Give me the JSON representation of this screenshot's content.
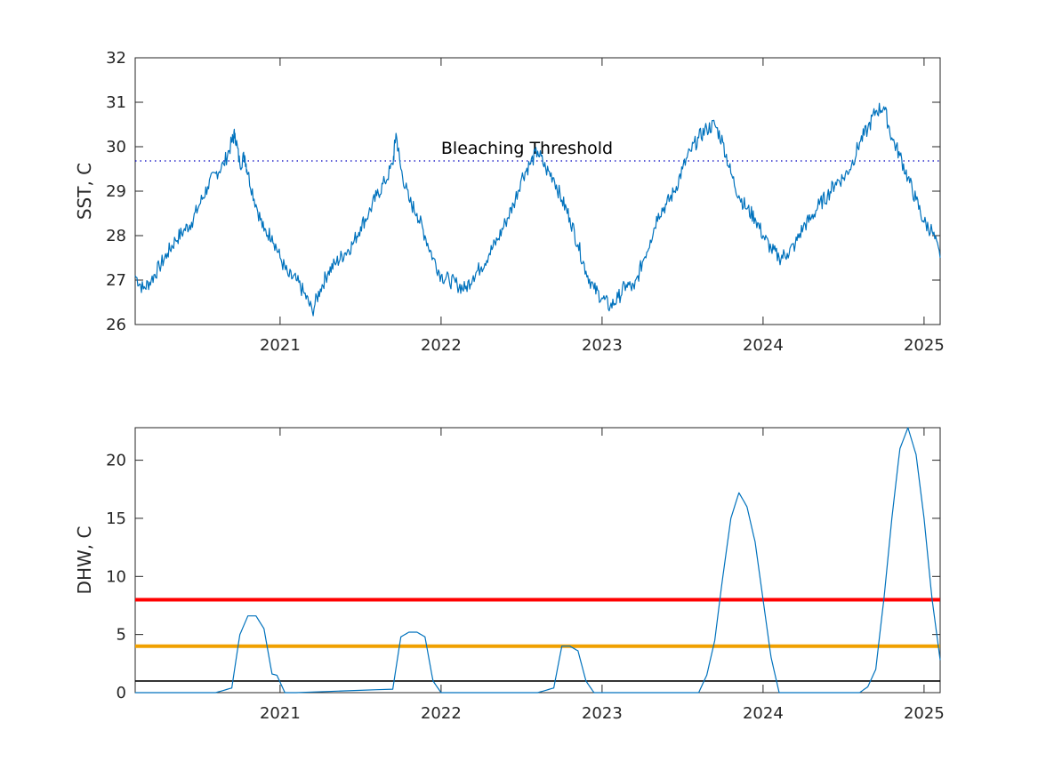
{
  "chart_data": [
    {
      "type": "line",
      "ylabel": "SST, C",
      "xlim": [
        2020.1,
        2025.1
      ],
      "ylim": [
        26,
        32
      ],
      "yticks": [
        26,
        27,
        28,
        29,
        30,
        31,
        32
      ],
      "xticks": [
        2021,
        2022,
        2023,
        2024,
        2025
      ],
      "grid": false,
      "series": [
        {
          "color": "#0072bd",
          "x": [
            2020.1,
            2020.15,
            2020.2,
            2020.25,
            2020.3,
            2020.35,
            2020.4,
            2020.45,
            2020.5,
            2020.55,
            2020.6,
            2020.65,
            2020.7,
            2020.72,
            2020.75,
            2020.78,
            2020.8,
            2020.85,
            2020.9,
            2020.95,
            2021.0,
            2021.05,
            2021.1,
            2021.15,
            2021.2,
            2021.25,
            2021.3,
            2021.35,
            2021.4,
            2021.45,
            2021.5,
            2021.55,
            2021.6,
            2021.65,
            2021.7,
            2021.72,
            2021.75,
            2021.8,
            2021.85,
            2021.9,
            2021.95,
            2022.0,
            2022.05,
            2022.1,
            2022.15,
            2022.2,
            2022.25,
            2022.3,
            2022.35,
            2022.4,
            2022.45,
            2022.5,
            2022.55,
            2022.6,
            2022.65,
            2022.7,
            2022.75,
            2022.8,
            2022.85,
            2022.9,
            2022.95,
            2023.0,
            2023.05,
            2023.1,
            2023.15,
            2023.2,
            2023.25,
            2023.3,
            2023.35,
            2023.4,
            2023.45,
            2023.5,
            2023.55,
            2023.6,
            2023.65,
            2023.7,
            2023.75,
            2023.8,
            2023.85,
            2023.9,
            2023.95,
            2024.0,
            2024.05,
            2024.1,
            2024.15,
            2024.2,
            2024.25,
            2024.3,
            2024.35,
            2024.4,
            2024.45,
            2024.5,
            2024.55,
            2024.6,
            2024.65,
            2024.7,
            2024.75,
            2024.8,
            2024.85,
            2024.9,
            2024.95,
            2025.0,
            2025.05,
            2025.1
          ],
          "values": [
            27.1,
            26.8,
            27.0,
            27.3,
            27.6,
            27.9,
            28.1,
            28.3,
            28.7,
            29.1,
            29.4,
            29.6,
            30.1,
            30.3,
            29.6,
            29.8,
            29.4,
            28.7,
            28.1,
            28.0,
            27.5,
            27.1,
            27.0,
            26.7,
            26.3,
            26.8,
            27.2,
            27.4,
            27.6,
            27.8,
            28.2,
            28.5,
            28.9,
            29.2,
            29.6,
            30.3,
            29.5,
            28.8,
            28.5,
            28.0,
            27.5,
            27.1,
            27.0,
            26.9,
            26.8,
            27.1,
            27.3,
            27.6,
            27.9,
            28.3,
            28.7,
            29.3,
            29.6,
            29.9,
            29.5,
            29.3,
            28.8,
            28.4,
            27.8,
            27.2,
            26.8,
            26.6,
            26.4,
            26.6,
            26.9,
            26.8,
            27.4,
            27.9,
            28.5,
            28.7,
            29.0,
            29.5,
            29.9,
            30.2,
            30.4,
            30.5,
            30.1,
            29.4,
            28.9,
            28.6,
            28.4,
            28.0,
            27.7,
            27.5,
            27.6,
            27.8,
            28.2,
            28.4,
            28.7,
            28.9,
            29.2,
            29.3,
            29.6,
            30.1,
            30.4,
            30.8,
            30.9,
            30.2,
            29.8,
            29.3,
            28.8,
            28.3,
            28.1,
            27.5
          ]
        }
      ],
      "threshold": {
        "value": 29.68,
        "color": "#0000c0",
        "label": "Bleaching Threshold",
        "label_x": 2022.0
      }
    },
    {
      "type": "line",
      "ylabel": "DHW, C",
      "xlim": [
        2020.1,
        2025.1
      ],
      "ylim": [
        0,
        22.8
      ],
      "yticks": [
        0,
        5,
        10,
        15,
        20
      ],
      "xticks": [
        2021,
        2022,
        2023,
        2024,
        2025
      ],
      "grid": false,
      "series": [
        {
          "color": "#0072bd",
          "x": [
            2020.1,
            2020.6,
            2020.7,
            2020.75,
            2020.8,
            2020.85,
            2020.9,
            2020.95,
            2020.98,
            2021.03,
            2021.1,
            2021.7,
            2021.75,
            2021.8,
            2021.85,
            2021.9,
            2021.95,
            2022.0,
            2022.05,
            2022.1,
            2022.6,
            2022.7,
            2022.75,
            2022.8,
            2022.85,
            2022.9,
            2022.95,
            2023.0,
            2023.6,
            2023.65,
            2023.7,
            2023.75,
            2023.8,
            2023.85,
            2023.9,
            2023.95,
            2024.0,
            2024.05,
            2024.1,
            2024.6,
            2024.65,
            2024.7,
            2024.75,
            2024.8,
            2024.85,
            2024.9,
            2024.95,
            2025.0,
            2025.05,
            2025.1
          ],
          "values": [
            0,
            0,
            0.4,
            5.0,
            6.6,
            6.6,
            5.5,
            1.6,
            1.5,
            0,
            0,
            0.3,
            4.8,
            5.2,
            5.2,
            4.8,
            1.0,
            0,
            0,
            0,
            0,
            0.4,
            4.0,
            4.0,
            3.6,
            1.0,
            0,
            0,
            0,
            1.5,
            4.5,
            10.0,
            15.0,
            17.2,
            16.0,
            13.0,
            8.0,
            3.0,
            0,
            0,
            0.5,
            2.0,
            8.0,
            15.0,
            21.0,
            22.8,
            20.5,
            15.0,
            8.0,
            2.8
          ]
        }
      ],
      "hlines": [
        {
          "value": 8,
          "color": "#ff0000",
          "width": 4
        },
        {
          "value": 4,
          "color": "#f0a000",
          "width": 4
        },
        {
          "value": 1,
          "color": "#000000",
          "width": 1.6
        }
      ]
    }
  ]
}
